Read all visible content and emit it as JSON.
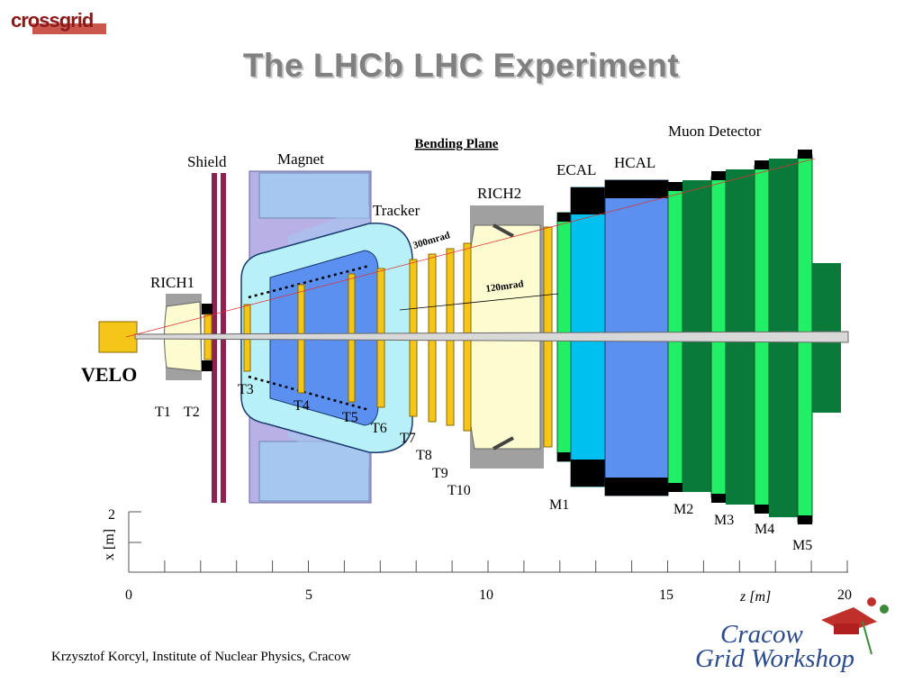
{
  "header": {
    "logo_text": "crossgrid",
    "title": "The LHCb LHC Experiment"
  },
  "diagram": {
    "heading": "Bending Plane",
    "labels": {
      "shield": "Shield",
      "magnet": "Magnet",
      "tracker": "Tracker",
      "rich1": "RICH1",
      "rich2": "RICH2",
      "ecal": "ECAL",
      "hcal": "HCAL",
      "muon": "Muon Detector",
      "velo": "VELO",
      "angle_300": "300mrad",
      "angle_120": "120mrad"
    },
    "stations": {
      "t1": "T1",
      "t2": "T2",
      "t3": "T3",
      "t4": "T4",
      "t5": "T5",
      "t6": "T6",
      "t7": "T7",
      "t8": "T8",
      "t9": "T9",
      "t10": "T10",
      "m1": "M1",
      "m2": "M2",
      "m3": "M3",
      "m4": "M4",
      "m5": "M5"
    },
    "axes": {
      "x_label": "x [m]",
      "x_tick": "2",
      "z_label": "z [m]",
      "z_ticks": [
        "0",
        "5",
        "10",
        "15",
        "20"
      ]
    },
    "colors": {
      "shield": "#8b2252",
      "magnet_fill": "#a6c8f0",
      "magnet_frame": "#b9b0e6",
      "tracker_fill": "#b8f0f8",
      "station": "#f5c518",
      "rich": "#fdfbd0",
      "ecal": "#00c0f0",
      "hcal": "#5b8ff0",
      "muon_light": "#22ee66",
      "muon_dark": "#0a7a3a"
    }
  },
  "footer": {
    "credit": "Krzysztof Korcyl, Institute of Nuclear Physics, Cracow",
    "workshop_line1": "Cracow",
    "workshop_line2": "Grid Workshop"
  }
}
